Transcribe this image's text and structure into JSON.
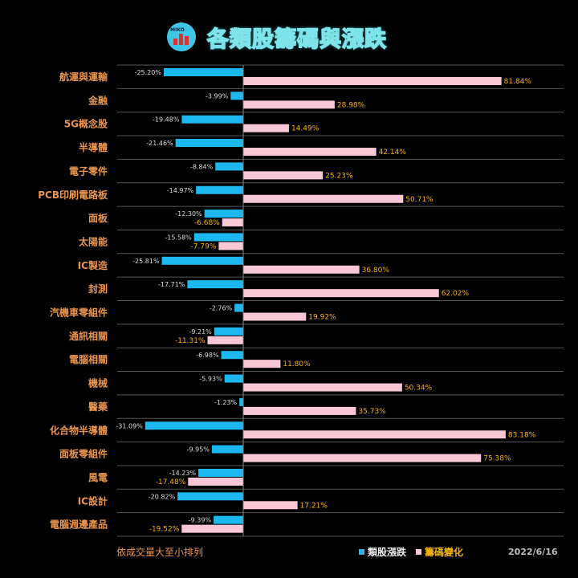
{
  "header": {
    "title": "各類股籌碼與漲跌",
    "logo_text": "MIKO"
  },
  "footer": {
    "note": "依成交量大至小排列",
    "date": "2022/6/16"
  },
  "colors": {
    "series1": "#1bb9ef",
    "series2": "#f8c8d6",
    "category": "#e8954a",
    "series2_label": "#f0b400"
  },
  "chart_data": {
    "type": "bar",
    "orientation": "horizontal",
    "title": "各類股籌碼與漲跌",
    "categories": [
      "航運與運輸",
      "金融",
      "5G概念股",
      "半導體",
      "電子零件",
      "PCB印刷電路板",
      "面板",
      "太陽能",
      "IC製造",
      "封測",
      "汽機車零組件",
      "通訊相關",
      "電腦相關",
      "機械",
      "醫藥",
      "化合物半導體",
      "面板零組件",
      "風電",
      "IC設計",
      "電腦週邊產品"
    ],
    "series": [
      {
        "name": "類股漲跌",
        "values": [
          -25.2,
          -3.99,
          -19.48,
          -21.46,
          -8.84,
          -14.97,
          -12.3,
          -15.58,
          -25.81,
          -17.71,
          -2.76,
          -9.21,
          -6.98,
          -5.93,
          -1.23,
          -31.09,
          -9.95,
          -14.23,
          -20.82,
          -9.39
        ]
      },
      {
        "name": "籌碼變化",
        "values": [
          81.84,
          28.98,
          14.49,
          42.14,
          25.23,
          50.71,
          -6.68,
          -7.79,
          36.8,
          62.02,
          19.92,
          -11.31,
          11.8,
          50.34,
          35.73,
          83.18,
          75.38,
          -17.48,
          17.21,
          -19.52
        ]
      }
    ],
    "unit": "%",
    "legend": "bottom",
    "grid": "horizontal"
  }
}
